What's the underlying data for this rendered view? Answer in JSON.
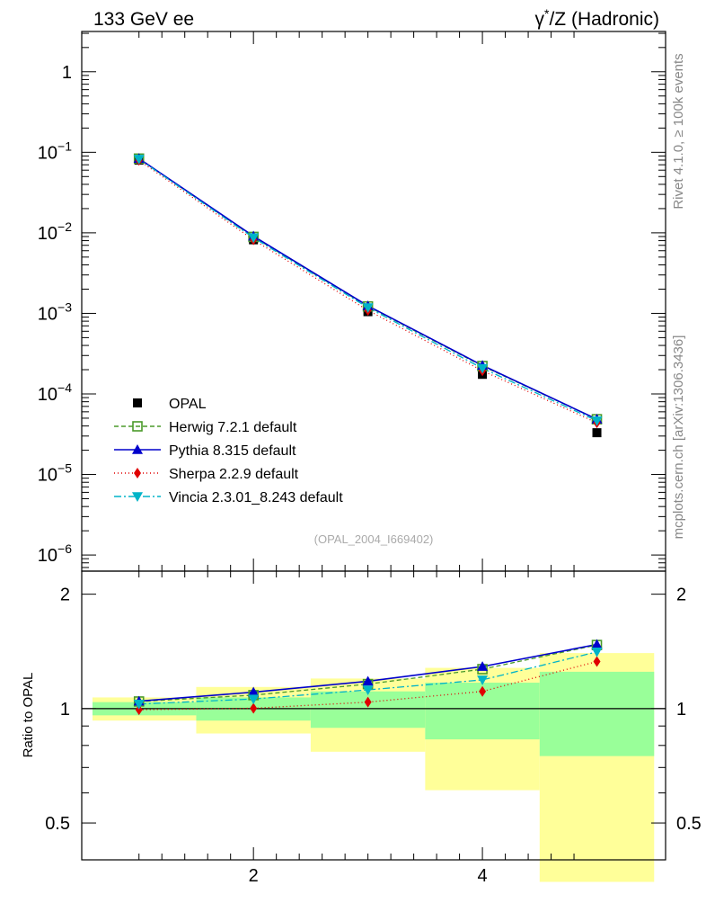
{
  "chart_data": {
    "type": "line",
    "title_left": "133 GeV ee",
    "title_right_a": "γ",
    "title_right_sup": "*",
    "title_right_b": "/Z (Hadronic)",
    "side_label_top": "Rivet 4.1.0, ≥ 100k events",
    "side_label_bottom": "mcplots.cern.ch [arXiv:1306.3436]",
    "watermark": "(OPAL_2004_I669402)",
    "xlim": [
      0.5,
      5.6
    ],
    "x_ticks": [
      {
        "v": 2,
        "label": "2"
      },
      {
        "v": 4,
        "label": "4"
      }
    ],
    "main": {
      "yscale": "log",
      "ylim_log10": [
        -6.2,
        0.5
      ],
      "y_ticks": [
        {
          "exp": 0,
          "base": "1",
          "sup": ""
        },
        {
          "exp": -1,
          "base": "10",
          "sup": "−1"
        },
        {
          "exp": -2,
          "base": "10",
          "sup": "−2"
        },
        {
          "exp": -3,
          "base": "10",
          "sup": "−3"
        },
        {
          "exp": -4,
          "base": "10",
          "sup": "−4"
        },
        {
          "exp": -5,
          "base": "10",
          "sup": "−5"
        },
        {
          "exp": -6,
          "base": "10",
          "sup": "−6"
        }
      ]
    },
    "x": [
      1,
      2,
      3,
      4,
      5
    ],
    "data": {
      "name": "OPAL",
      "values": [
        0.08,
        0.0082,
        0.00105,
        0.000175,
        3.3e-05
      ],
      "color": "#000000"
    },
    "series": [
      {
        "name": "Herwig 7.2.1 default",
        "color": "#4a9a2a",
        "dash": "5,3",
        "marker": "square-open",
        "values": [
          0.0835,
          0.0089,
          0.00122,
          0.000222,
          4.85e-05
        ],
        "ratio": [
          1.044,
          1.085,
          1.16,
          1.27,
          1.47
        ]
      },
      {
        "name": "Pythia 8.315 default",
        "color": "#0000cc",
        "dash": "",
        "marker": "triangle-up",
        "values": [
          0.0837,
          0.0091,
          0.00124,
          0.000226,
          4.86e-05
        ],
        "ratio": [
          1.046,
          1.105,
          1.18,
          1.29,
          1.475
        ]
      },
      {
        "name": "Sherpa 2.2.9 default",
        "color": "#e00000",
        "dash": "1,3",
        "marker": "diamond",
        "values": [
          0.0795,
          0.0082,
          0.00109,
          0.000194,
          4.38e-05
        ],
        "ratio": [
          0.993,
          1.002,
          1.04,
          1.11,
          1.33
        ]
      },
      {
        "name": "Vincia 2.3.01_8.243 default",
        "color": "#00b4c8",
        "dash": "8,3,2,3",
        "marker": "triangle-down",
        "values": [
          0.0823,
          0.0087,
          0.00118,
          0.000208,
          4.64e-05
        ],
        "ratio": [
          1.028,
          1.06,
          1.12,
          1.19,
          1.41
        ]
      }
    ],
    "ratio": {
      "ylabel": "Ratio to OPAL",
      "yscale": "log",
      "ylim": [
        0.4,
        2.3
      ],
      "y_ticks": [
        {
          "v": 2,
          "label": "2"
        },
        {
          "v": 1,
          "label": "1"
        },
        {
          "v": 0.5,
          "label": "0.5"
        }
      ],
      "bands": [
        {
          "x0": 0.5,
          "x1": 1.5,
          "inner": [
            0.96,
            1.04
          ],
          "outer": [
            0.93,
            1.07
          ]
        },
        {
          "x0": 1.5,
          "x1": 2.5,
          "inner": [
            0.93,
            1.07
          ],
          "outer": [
            0.86,
            1.14
          ]
        },
        {
          "x0": 2.5,
          "x1": 3.5,
          "inner": [
            0.89,
            1.11
          ],
          "outer": [
            0.77,
            1.2
          ]
        },
        {
          "x0": 3.5,
          "x1": 4.5,
          "inner": [
            0.83,
            1.17
          ],
          "outer": [
            0.61,
            1.28
          ]
        },
        {
          "x0": 4.5,
          "x1": 5.5,
          "inner": [
            0.75,
            1.25
          ],
          "outer": [
            0.35,
            1.4
          ]
        }
      ],
      "band_colors": {
        "inner": "#99ff99",
        "outer": "#ffff99"
      }
    }
  }
}
